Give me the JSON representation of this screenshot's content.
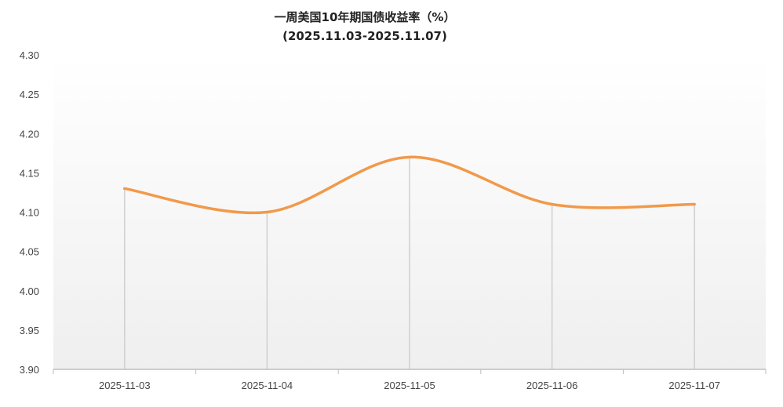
{
  "chart_data": {
    "type": "line",
    "title": "一周美国10年期国债收益率（%）",
    "subtitle": "(2025.11.03-2025.11.07)",
    "xlabel": "",
    "ylabel": "",
    "categories": [
      "2025-11-03",
      "2025-11-04",
      "2025-11-05",
      "2025-11-06",
      "2025-11-07"
    ],
    "series": [
      {
        "values": [
          4.13,
          4.1,
          4.17,
          4.11,
          4.11
        ],
        "color": "#f2994a"
      }
    ],
    "ylim": [
      3.9,
      4.3
    ],
    "yticks": [
      "3.90",
      "3.95",
      "4.00",
      "4.05",
      "4.10",
      "4.15",
      "4.20",
      "4.25",
      "4.30"
    ],
    "grid": false,
    "drop_lines": true,
    "smooth": true,
    "background_gradient": [
      "#ffffff",
      "#efefef"
    ]
  }
}
